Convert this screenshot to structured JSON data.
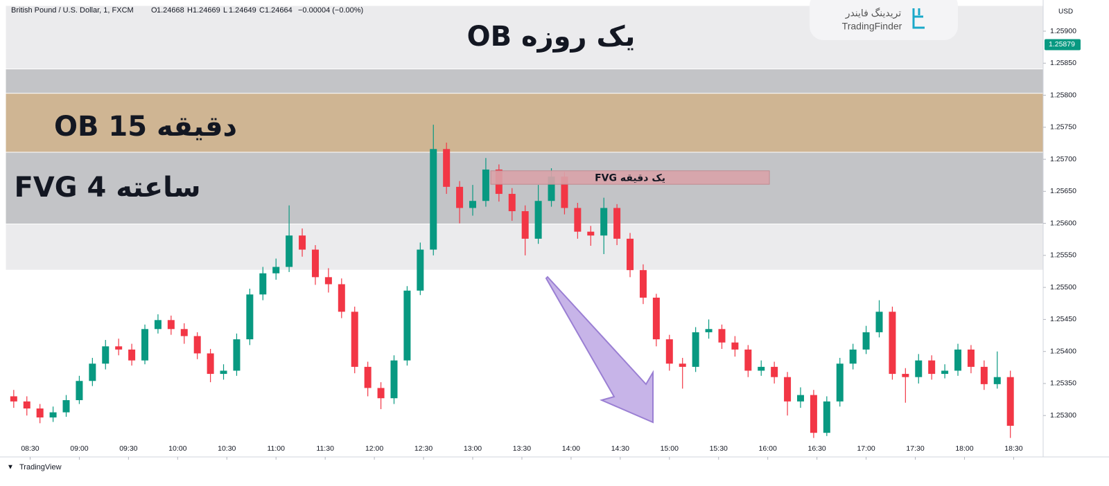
{
  "chart_data": {
    "type": "candlestick",
    "title": "British Pound / U.S. Dollar, 1, FXCM",
    "ohlc_legend": [
      [
        "O",
        "1.24668"
      ],
      [
        "H",
        "1.24669"
      ],
      [
        "L",
        "1.24649"
      ],
      [
        "C",
        "1.24664"
      ]
    ],
    "change": "−0.00004 (−0.00%)",
    "currency": "USD",
    "last_price": {
      "value": 1.25879,
      "label": "1.25879"
    },
    "brand": "TradingView",
    "logo": {
      "fa": "تریدینگ فایندر",
      "en": "TradingFinder"
    },
    "up_color": "#089981",
    "down_color": "#f23645",
    "zones": [
      {
        "label": "OB یک روزه",
        "y0": 1.25527,
        "y1": 1.2594,
        "color": "#ebebed"
      },
      {
        "label": "FVG 4 ساعته",
        "y0": 1.25599,
        "y1": 1.25841,
        "color": "#c3c4c7"
      },
      {
        "label": "OB 15 دقیقه",
        "y0": 1.25711,
        "y1": 1.25803,
        "color": "#cfb593"
      }
    ],
    "fvg_box": {
      "label": "FVG یک دقیقه",
      "x0": 791,
      "x1": 961,
      "y0": 1.25661,
      "y1": 1.25682,
      "color": "#d9a3a9"
    },
    "x": [
      500,
      508,
      516,
      524,
      532,
      540,
      548,
      556,
      564,
      572,
      580,
      588,
      596,
      604,
      612,
      620,
      628,
      636,
      644,
      652,
      660,
      668,
      676,
      684,
      692,
      700,
      708,
      716,
      724,
      732,
      740,
      748,
      756,
      764,
      772,
      780,
      788,
      796,
      804,
      812,
      820,
      828,
      836,
      844,
      852,
      860,
      868,
      876,
      884,
      892,
      900,
      908,
      916,
      924,
      932,
      940,
      948,
      956,
      964,
      972,
      980,
      988,
      996,
      1004,
      1012,
      1020,
      1028,
      1036,
      1044,
      1052,
      1060,
      1068,
      1076,
      1084,
      1092,
      1100,
      1108
    ],
    "open": [
      1.2533,
      1.25322,
      1.25311,
      1.25297,
      1.25305,
      1.25324,
      1.25354,
      1.25381,
      1.25408,
      1.25403,
      1.25386,
      1.25435,
      1.25449,
      1.25435,
      1.25424,
      1.25397,
      1.25365,
      1.2537,
      1.25419,
      1.25489,
      1.25522,
      1.25532,
      1.25581,
      1.25559,
      1.25516,
      1.25505,
      1.25462,
      1.25376,
      1.25343,
      1.25327,
      1.25386,
      1.25495,
      1.25559,
      1.25716,
      1.25657,
      1.25624,
      1.25635,
      1.25684,
      1.25646,
      1.25619,
      1.25576,
      1.25635,
      1.25673,
      1.25624,
      1.25587,
      1.25581,
      1.25624,
      1.25576,
      1.25527,
      1.25484,
      1.25419,
      1.25381,
      1.25376,
      1.2543,
      1.25435,
      1.25414,
      1.25403,
      1.2537,
      1.25376,
      1.2536,
      1.25322,
      1.25332,
      1.25273,
      1.25322,
      1.25381,
      1.25403,
      1.2543,
      1.25462,
      1.25365,
      1.2536,
      1.25386,
      1.25365,
      1.2537,
      1.25403,
      1.25376,
      1.25349,
      1.2536
    ],
    "high": [
      1.2534,
      1.2533,
      1.25318,
      1.25314,
      1.25332,
      1.25362,
      1.2539,
      1.25418,
      1.2542,
      1.25412,
      1.25442,
      1.25458,
      1.25456,
      1.25444,
      1.2543,
      1.25404,
      1.2538,
      1.25428,
      1.25498,
      1.25532,
      1.25545,
      1.25628,
      1.25592,
      1.25566,
      1.2553,
      1.25514,
      1.2547,
      1.25384,
      1.25352,
      1.25394,
      1.25502,
      1.2557,
      1.25754,
      1.25726,
      1.25666,
      1.2566,
      1.25702,
      1.25692,
      1.25655,
      1.25628,
      1.2566,
      1.25686,
      1.2568,
      1.25632,
      1.25596,
      1.2564,
      1.2563,
      1.25585,
      1.25536,
      1.2549,
      1.25426,
      1.2539,
      1.25438,
      1.2545,
      1.25442,
      1.25424,
      1.2541,
      1.25386,
      1.25384,
      1.25368,
      1.25344,
      1.2534,
      1.2533,
      1.2539,
      1.25412,
      1.2544,
      1.2548,
      1.2547,
      1.25374,
      1.25396,
      1.25394,
      1.2538,
      1.25412,
      1.2541,
      1.25386,
      1.254,
      1.2537
    ],
    "low": [
      1.25312,
      1.253,
      1.25288,
      1.2529,
      1.25298,
      1.25318,
      1.25346,
      1.25372,
      1.25394,
      1.25378,
      1.2538,
      1.25428,
      1.25426,
      1.25412,
      1.25388,
      1.25352,
      1.25356,
      1.25362,
      1.2541,
      1.2548,
      1.25512,
      1.25524,
      1.25548,
      1.25504,
      1.25492,
      1.25452,
      1.25366,
      1.2533,
      1.2531,
      1.25318,
      1.25378,
      1.25488,
      1.2555,
      1.25646,
      1.256,
      1.25612,
      1.25626,
      1.25634,
      1.25604,
      1.2555,
      1.25568,
      1.25626,
      1.25614,
      1.25576,
      1.25565,
      1.25552,
      1.25566,
      1.25516,
      1.25474,
      1.25408,
      1.2537,
      1.25342,
      1.25368,
      1.2542,
      1.25404,
      1.25392,
      1.2536,
      1.25362,
      1.2535,
      1.253,
      1.25312,
      1.25265,
      1.25268,
      1.25314,
      1.25372,
      1.25396,
      1.25422,
      1.25356,
      1.2532,
      1.2535,
      1.25356,
      1.25358,
      1.25362,
      1.25366,
      1.2534,
      1.25342,
      1.25265
    ],
    "close": [
      1.25322,
      1.25311,
      1.25297,
      1.25305,
      1.25324,
      1.25354,
      1.25381,
      1.25408,
      1.25403,
      1.25386,
      1.25435,
      1.25449,
      1.25435,
      1.25424,
      1.25397,
      1.25365,
      1.2537,
      1.25419,
      1.25489,
      1.25522,
      1.25532,
      1.25581,
      1.25559,
      1.25516,
      1.25505,
      1.25462,
      1.25376,
      1.25343,
      1.25327,
      1.25386,
      1.25495,
      1.25559,
      1.25716,
      1.25657,
      1.25624,
      1.25635,
      1.25684,
      1.25646,
      1.25619,
      1.25576,
      1.25635,
      1.25673,
      1.25624,
      1.25587,
      1.25581,
      1.25624,
      1.25576,
      1.25527,
      1.25484,
      1.25419,
      1.25381,
      1.25376,
      1.2543,
      1.25435,
      1.25414,
      1.25403,
      1.2537,
      1.25376,
      1.2536,
      1.25322,
      1.25332,
      1.25273,
      1.25322,
      1.25381,
      1.25403,
      1.2543,
      1.25462,
      1.25365,
      1.2536,
      1.25386,
      1.25365,
      1.2537,
      1.25403,
      1.25376,
      1.25349,
      1.2536,
      1.25284
    ],
    "xlim": [
      495,
      1128
    ],
    "ylim": [
      1.25257,
      1.2594
    ],
    "xticks": [
      {
        "value": 510,
        "label": "08:30"
      },
      {
        "value": 540,
        "label": "09:00"
      },
      {
        "value": 570,
        "label": "09:30"
      },
      {
        "value": 600,
        "label": "10:00"
      },
      {
        "value": 630,
        "label": "10:30"
      },
      {
        "value": 660,
        "label": "11:00"
      },
      {
        "value": 690,
        "label": "11:30"
      },
      {
        "value": 720,
        "label": "12:00"
      },
      {
        "value": 750,
        "label": "12:30"
      },
      {
        "value": 780,
        "label": "13:00"
      },
      {
        "value": 810,
        "label": "13:30"
      },
      {
        "value": 840,
        "label": "14:00"
      },
      {
        "value": 870,
        "label": "14:30"
      },
      {
        "value": 900,
        "label": "15:00"
      },
      {
        "value": 930,
        "label": "15:30"
      },
      {
        "value": 960,
        "label": "16:00"
      },
      {
        "value": 990,
        "label": "16:30"
      },
      {
        "value": 1020,
        "label": "17:00"
      },
      {
        "value": 1050,
        "label": "17:30"
      },
      {
        "value": 1080,
        "label": "18:00"
      },
      {
        "value": 1110,
        "label": "18:30"
      }
    ],
    "yticks": [
      {
        "value": 1.253,
        "label": "1.25300"
      },
      {
        "value": 1.2535,
        "label": "1.25350"
      },
      {
        "value": 1.254,
        "label": "1.25400"
      },
      {
        "value": 1.2545,
        "label": "1.25450"
      },
      {
        "value": 1.255,
        "label": "1.25500"
      },
      {
        "value": 1.2555,
        "label": "1.25550"
      },
      {
        "value": 1.256,
        "label": "1.25600"
      },
      {
        "value": 1.2565,
        "label": "1.25650"
      },
      {
        "value": 1.257,
        "label": "1.25700"
      },
      {
        "value": 1.2575,
        "label": "1.25750"
      },
      {
        "value": 1.258,
        "label": "1.25800"
      },
      {
        "value": 1.2585,
        "label": "1.25850"
      },
      {
        "value": 1.259,
        "label": "1.25900"
      }
    ]
  }
}
